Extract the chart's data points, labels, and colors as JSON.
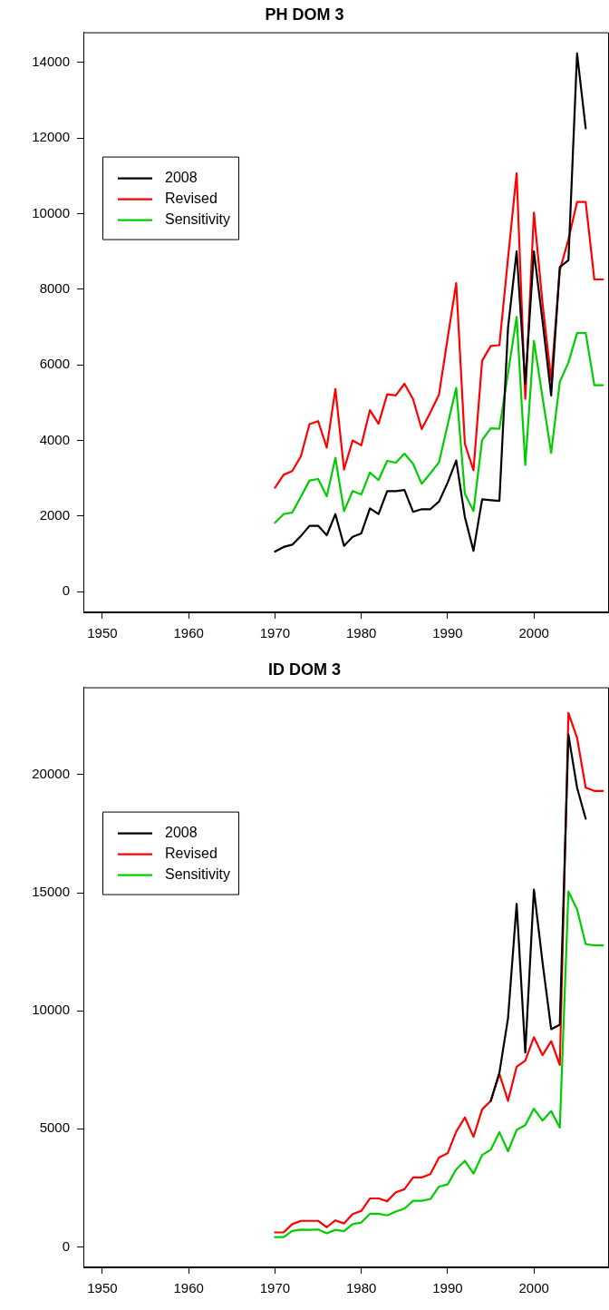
{
  "chart_data": [
    {
      "type": "line",
      "title": "PH DOM 3",
      "x": [
        1970,
        1971,
        1972,
        1973,
        1974,
        1975,
        1976,
        1977,
        1978,
        1979,
        1980,
        1981,
        1982,
        1983,
        1984,
        1985,
        1986,
        1987,
        1988,
        1989,
        1990,
        1991,
        1992,
        1993,
        1994,
        1995,
        1996,
        1997,
        1998,
        1999,
        2000,
        2001,
        2002,
        2003,
        2004,
        2005,
        2006,
        2007,
        2008
      ],
      "series": [
        {
          "name": "2008",
          "color": "#000000",
          "values": [
            1060,
            1180,
            1240,
            1470,
            1740,
            1740,
            1490,
            2050,
            1210,
            1450,
            1540,
            2200,
            2050,
            2660,
            2660,
            2690,
            2110,
            2180,
            2180,
            2380,
            2880,
            3470,
            1970,
            1080,
            2440,
            2420,
            2400,
            6980,
            9000,
            5500,
            9000,
            7160,
            5190,
            8590,
            8770,
            14240,
            12260,
            null,
            null
          ]
        },
        {
          "name": "Revised",
          "color": "#ff0000",
          "values": [
            2750,
            3090,
            3190,
            3580,
            4430,
            4510,
            3810,
            5360,
            3230,
            4000,
            3870,
            4800,
            4440,
            5220,
            5190,
            5500,
            5090,
            4300,
            4740,
            5210,
            6700,
            8160,
            3910,
            3210,
            6110,
            6500,
            6520,
            8820,
            11070,
            5100,
            10030,
            7620,
            5600,
            8500,
            9320,
            10310,
            10310,
            8260,
            8260
          ]
        },
        {
          "name": "Sensitivity",
          "color": "#00cd00",
          "values": [
            1820,
            2050,
            2090,
            2510,
            2940,
            2980,
            2520,
            3540,
            2130,
            2660,
            2570,
            3150,
            2950,
            3460,
            3410,
            3650,
            3380,
            2850,
            3130,
            3420,
            4410,
            5390,
            2590,
            2130,
            4010,
            4320,
            4310,
            5780,
            7270,
            3350,
            6630,
            5140,
            3670,
            5550,
            6060,
            6840,
            6840,
            5460,
            5460
          ]
        }
      ],
      "xlim": [
        1947.8,
        2008.7
      ],
      "xticks": [
        1950,
        1960,
        1970,
        1980,
        1990,
        2000
      ],
      "ylim": [
        -550,
        14800
      ],
      "yticks": [
        0,
        2000,
        4000,
        6000,
        8000,
        10000,
        12000,
        14000
      ],
      "grid": false,
      "legend": "top left",
      "marker": "none",
      "line_style": "solid"
    },
    {
      "type": "line",
      "title": "ID DOM 3",
      "x": [
        1970,
        1971,
        1972,
        1973,
        1974,
        1975,
        1976,
        1977,
        1978,
        1979,
        1980,
        1981,
        1982,
        1983,
        1984,
        1985,
        1986,
        1987,
        1988,
        1989,
        1990,
        1991,
        1992,
        1993,
        1994,
        1995,
        1996,
        1997,
        1998,
        1999,
        2000,
        2001,
        2002,
        2003,
        2004,
        2005,
        2006,
        2007,
        2008
      ],
      "series": [
        {
          "name": "2008",
          "color": "#000000",
          "values": [
            null,
            null,
            null,
            null,
            null,
            null,
            null,
            null,
            null,
            null,
            null,
            null,
            null,
            null,
            null,
            null,
            null,
            null,
            null,
            null,
            null,
            null,
            null,
            null,
            null,
            6180,
            7370,
            9680,
            14530,
            8230,
            15130,
            12050,
            9220,
            9410,
            21690,
            19450,
            18130,
            null,
            null
          ]
        },
        {
          "name": "Revised",
          "color": "#ff0000",
          "values": [
            610,
            610,
            960,
            1100,
            1100,
            1100,
            830,
            1120,
            990,
            1390,
            1520,
            2050,
            2050,
            1930,
            2310,
            2440,
            2940,
            2940,
            3080,
            3780,
            3960,
            4880,
            5480,
            4660,
            5820,
            6180,
            7330,
            6180,
            7630,
            7890,
            8880,
            8120,
            8710,
            7700,
            22610,
            21560,
            19450,
            19310,
            19310
          ]
        },
        {
          "name": "Sensitivity",
          "color": "#00cd00",
          "values": [
            410,
            410,
            670,
            730,
            720,
            730,
            570,
            720,
            660,
            960,
            1030,
            1400,
            1400,
            1330,
            1490,
            1620,
            1950,
            1950,
            2020,
            2550,
            2640,
            3280,
            3640,
            3100,
            3890,
            4110,
            4860,
            4050,
            4950,
            5150,
            5850,
            5350,
            5750,
            5050,
            15050,
            14300,
            12820,
            12770,
            12770
          ]
        }
      ],
      "xlim": [
        1947.8,
        2008.7
      ],
      "xticks": [
        1950,
        1960,
        1970,
        1980,
        1990,
        2000
      ],
      "ylim": [
        -870,
        23700
      ],
      "yticks": [
        0,
        5000,
        10000,
        15000,
        20000
      ],
      "grid": false,
      "legend": "top left",
      "marker": "none",
      "line_style": "solid"
    }
  ]
}
